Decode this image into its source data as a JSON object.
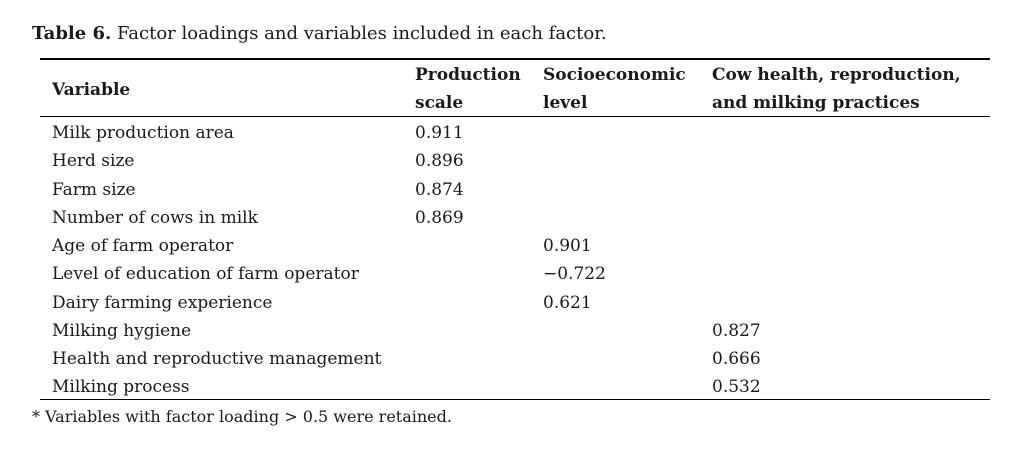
{
  "caption": {
    "label": "Table 6.",
    "text": " Factor loadings and variables included in each factor."
  },
  "headers": {
    "variable": "Variable",
    "col1_line1": "Production",
    "col1_line2": "scale",
    "col2_line1": "Socioeconomic",
    "col2_line2": "level",
    "col3_line1": "Cow health, reproduction,",
    "col3_line2": "and milking practices"
  },
  "rows": [
    {
      "variable": "Milk production area",
      "col": 1,
      "value": "0.911"
    },
    {
      "variable": "Herd size",
      "col": 1,
      "value": "0.896"
    },
    {
      "variable": "Farm size",
      "col": 1,
      "value": "0.874"
    },
    {
      "variable": "Number of cows in milk",
      "col": 1,
      "value": "0.869"
    },
    {
      "variable": "Age of farm operator",
      "col": 2,
      "value": "0.901"
    },
    {
      "variable": "Level of education of farm operator",
      "col": 2,
      "value": "−0.722"
    },
    {
      "variable": "Dairy farming experience",
      "col": 2,
      "value": "0.621"
    },
    {
      "variable": "Milking hygiene",
      "col": 3,
      "value": "0.827"
    },
    {
      "variable": "Health and reproductive management",
      "col": 3,
      "value": "0.666"
    },
    {
      "variable": "Milking process",
      "col": 3,
      "value": "0.532"
    }
  ],
  "footnote": "* Variables with factor loading > 0.5 were retained."
}
